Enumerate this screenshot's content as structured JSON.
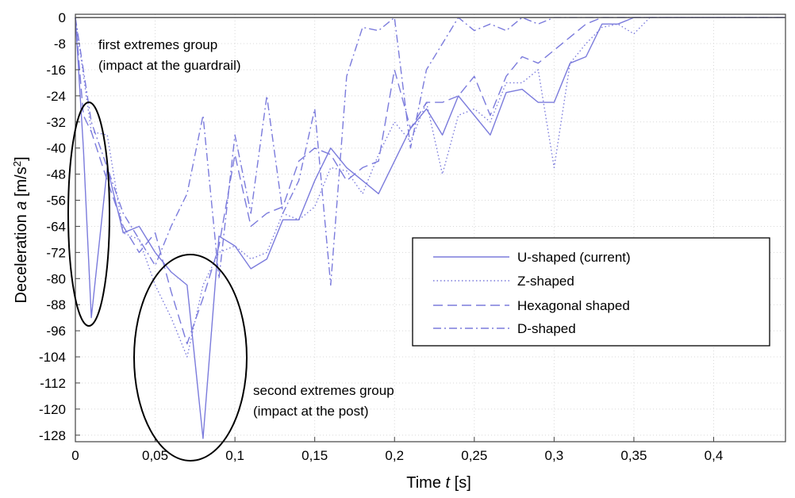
{
  "chart_data": {
    "type": "line",
    "xlabel": {
      "prefix": "Time ",
      "var": "t",
      "suffix": " [s]"
    },
    "ylabel": {
      "prefix": "Deceleration ",
      "var": "a",
      "unit_open": " [m/s",
      "unit_sup": "2",
      "unit_close": "]"
    },
    "xlim": [
      0,
      0.445
    ],
    "ylim": [
      -130,
      1
    ],
    "xticks": [
      {
        "value": 0,
        "label": "0"
      },
      {
        "value": 0.05,
        "label": "0,05"
      },
      {
        "value": 0.1,
        "label": "0,1"
      },
      {
        "value": 0.15,
        "label": "0,15"
      },
      {
        "value": 0.2,
        "label": "0,2"
      },
      {
        "value": 0.25,
        "label": "0,25"
      },
      {
        "value": 0.3,
        "label": "0,3"
      },
      {
        "value": 0.35,
        "label": "0,35"
      },
      {
        "value": 0.4,
        "label": "0,4"
      }
    ],
    "yticks": [
      {
        "value": 0,
        "label": "0"
      },
      {
        "value": -8,
        "label": "-8"
      },
      {
        "value": -16,
        "label": "-16"
      },
      {
        "value": -24,
        "label": "-24"
      },
      {
        "value": -32,
        "label": "-32"
      },
      {
        "value": -40,
        "label": "-40"
      },
      {
        "value": -48,
        "label": "-48"
      },
      {
        "value": -56,
        "label": "-56"
      },
      {
        "value": -64,
        "label": "-64"
      },
      {
        "value": -72,
        "label": "-72"
      },
      {
        "value": -80,
        "label": "-80"
      },
      {
        "value": -88,
        "label": "-88"
      },
      {
        "value": -96,
        "label": "-96"
      },
      {
        "value": -104,
        "label": "-104"
      },
      {
        "value": -112,
        "label": "-112"
      },
      {
        "value": -120,
        "label": "-120"
      },
      {
        "value": -128,
        "label": "-128"
      }
    ],
    "legend_position": "right",
    "series": [
      {
        "name": "U-shaped (current)",
        "style": "solid",
        "color": "#7b7bdc",
        "x": [
          0,
          0.005,
          0.01,
          0.02,
          0.03,
          0.04,
          0.05,
          0.06,
          0.07,
          0.08,
          0.09,
          0.1,
          0.11,
          0.12,
          0.13,
          0.14,
          0.15,
          0.16,
          0.17,
          0.18,
          0.19,
          0.2,
          0.21,
          0.22,
          0.23,
          0.24,
          0.25,
          0.26,
          0.27,
          0.28,
          0.29,
          0.3,
          0.31,
          0.32,
          0.33,
          0.34,
          0.35,
          0.36,
          0.4,
          0.445
        ],
        "y": [
          0,
          -40,
          -92,
          -46,
          -66,
          -64,
          -72,
          -78,
          -82,
          -129,
          -67,
          -70,
          -77,
          -74,
          -62,
          -62,
          -50,
          -40,
          -46,
          -50,
          -54,
          -44,
          -34,
          -28,
          -36,
          -24,
          -30,
          -36,
          -23,
          -22,
          -26,
          -26,
          -14,
          -12,
          -2,
          -2,
          0,
          0,
          0,
          0
        ]
      },
      {
        "name": "Z-shaped",
        "style": "dotted",
        "color": "#7b7bdc",
        "x": [
          0,
          0.01,
          0.02,
          0.03,
          0.04,
          0.05,
          0.06,
          0.07,
          0.08,
          0.09,
          0.1,
          0.11,
          0.12,
          0.13,
          0.14,
          0.15,
          0.16,
          0.17,
          0.18,
          0.19,
          0.2,
          0.21,
          0.22,
          0.23,
          0.24,
          0.25,
          0.26,
          0.27,
          0.28,
          0.29,
          0.3,
          0.31,
          0.32,
          0.33,
          0.34,
          0.35,
          0.36,
          0.4,
          0.445
        ],
        "y": [
          0,
          -35,
          -36,
          -66,
          -68,
          -82,
          -92,
          -104,
          -82,
          -72,
          -70,
          -74,
          -72,
          -60,
          -62,
          -58,
          -46,
          -47,
          -54,
          -42,
          -32,
          -38,
          -26,
          -48,
          -30,
          -28,
          -32,
          -20,
          -20,
          -16,
          -46,
          -14,
          -8,
          -3,
          -2,
          -5,
          0,
          0,
          0
        ]
      },
      {
        "name": "Hexagonal shaped",
        "style": "dashed",
        "color": "#7b7bdc",
        "x": [
          0,
          0.005,
          0.01,
          0.02,
          0.03,
          0.04,
          0.05,
          0.06,
          0.07,
          0.08,
          0.09,
          0.1,
          0.11,
          0.12,
          0.13,
          0.14,
          0.15,
          0.16,
          0.17,
          0.18,
          0.19,
          0.2,
          0.21,
          0.22,
          0.23,
          0.24,
          0.25,
          0.26,
          0.27,
          0.28,
          0.29,
          0.3,
          0.31,
          0.32,
          0.33,
          0.34,
          0.35,
          0.36,
          0.4,
          0.445
        ],
        "y": [
          0,
          -30,
          -35,
          -50,
          -64,
          -72,
          -66,
          -84,
          -100,
          -86,
          -70,
          -42,
          -64,
          -60,
          -58,
          -44,
          -40,
          -42,
          -50,
          -46,
          -44,
          -16,
          -34,
          -26,
          -26,
          -24,
          -18,
          -30,
          -18,
          -12,
          -14,
          -10,
          -6,
          -2,
          0,
          0,
          0,
          0,
          0,
          0
        ]
      },
      {
        "name": "D-shaped",
        "style": "dashdot",
        "color": "#7b7bdc",
        "x": [
          0,
          0.01,
          0.02,
          0.03,
          0.04,
          0.05,
          0.06,
          0.07,
          0.08,
          0.09,
          0.1,
          0.11,
          0.12,
          0.13,
          0.14,
          0.15,
          0.16,
          0.17,
          0.18,
          0.19,
          0.2,
          0.21,
          0.22,
          0.23,
          0.24,
          0.25,
          0.26,
          0.27,
          0.28,
          0.29,
          0.3,
          0.31,
          0.32,
          0.33,
          0.34,
          0.35,
          0.36,
          0.4,
          0.445
        ],
        "y": [
          0,
          -32,
          -46,
          -60,
          -68,
          -76,
          -64,
          -54,
          -30,
          -80,
          -36,
          -60,
          -24,
          -60,
          -50,
          -28,
          -82,
          -18,
          -3,
          -4,
          0,
          -40,
          -16,
          -8,
          0,
          -4,
          -2,
          -4,
          0,
          -2,
          0,
          0,
          0,
          0,
          0,
          0,
          0,
          0,
          0
        ]
      }
    ],
    "annotations": [
      {
        "lines": [
          "first extremes group",
          "(impact at the guardrail)"
        ]
      },
      {
        "lines": [
          "second extremes group",
          "(impact at the post)"
        ]
      }
    ]
  }
}
